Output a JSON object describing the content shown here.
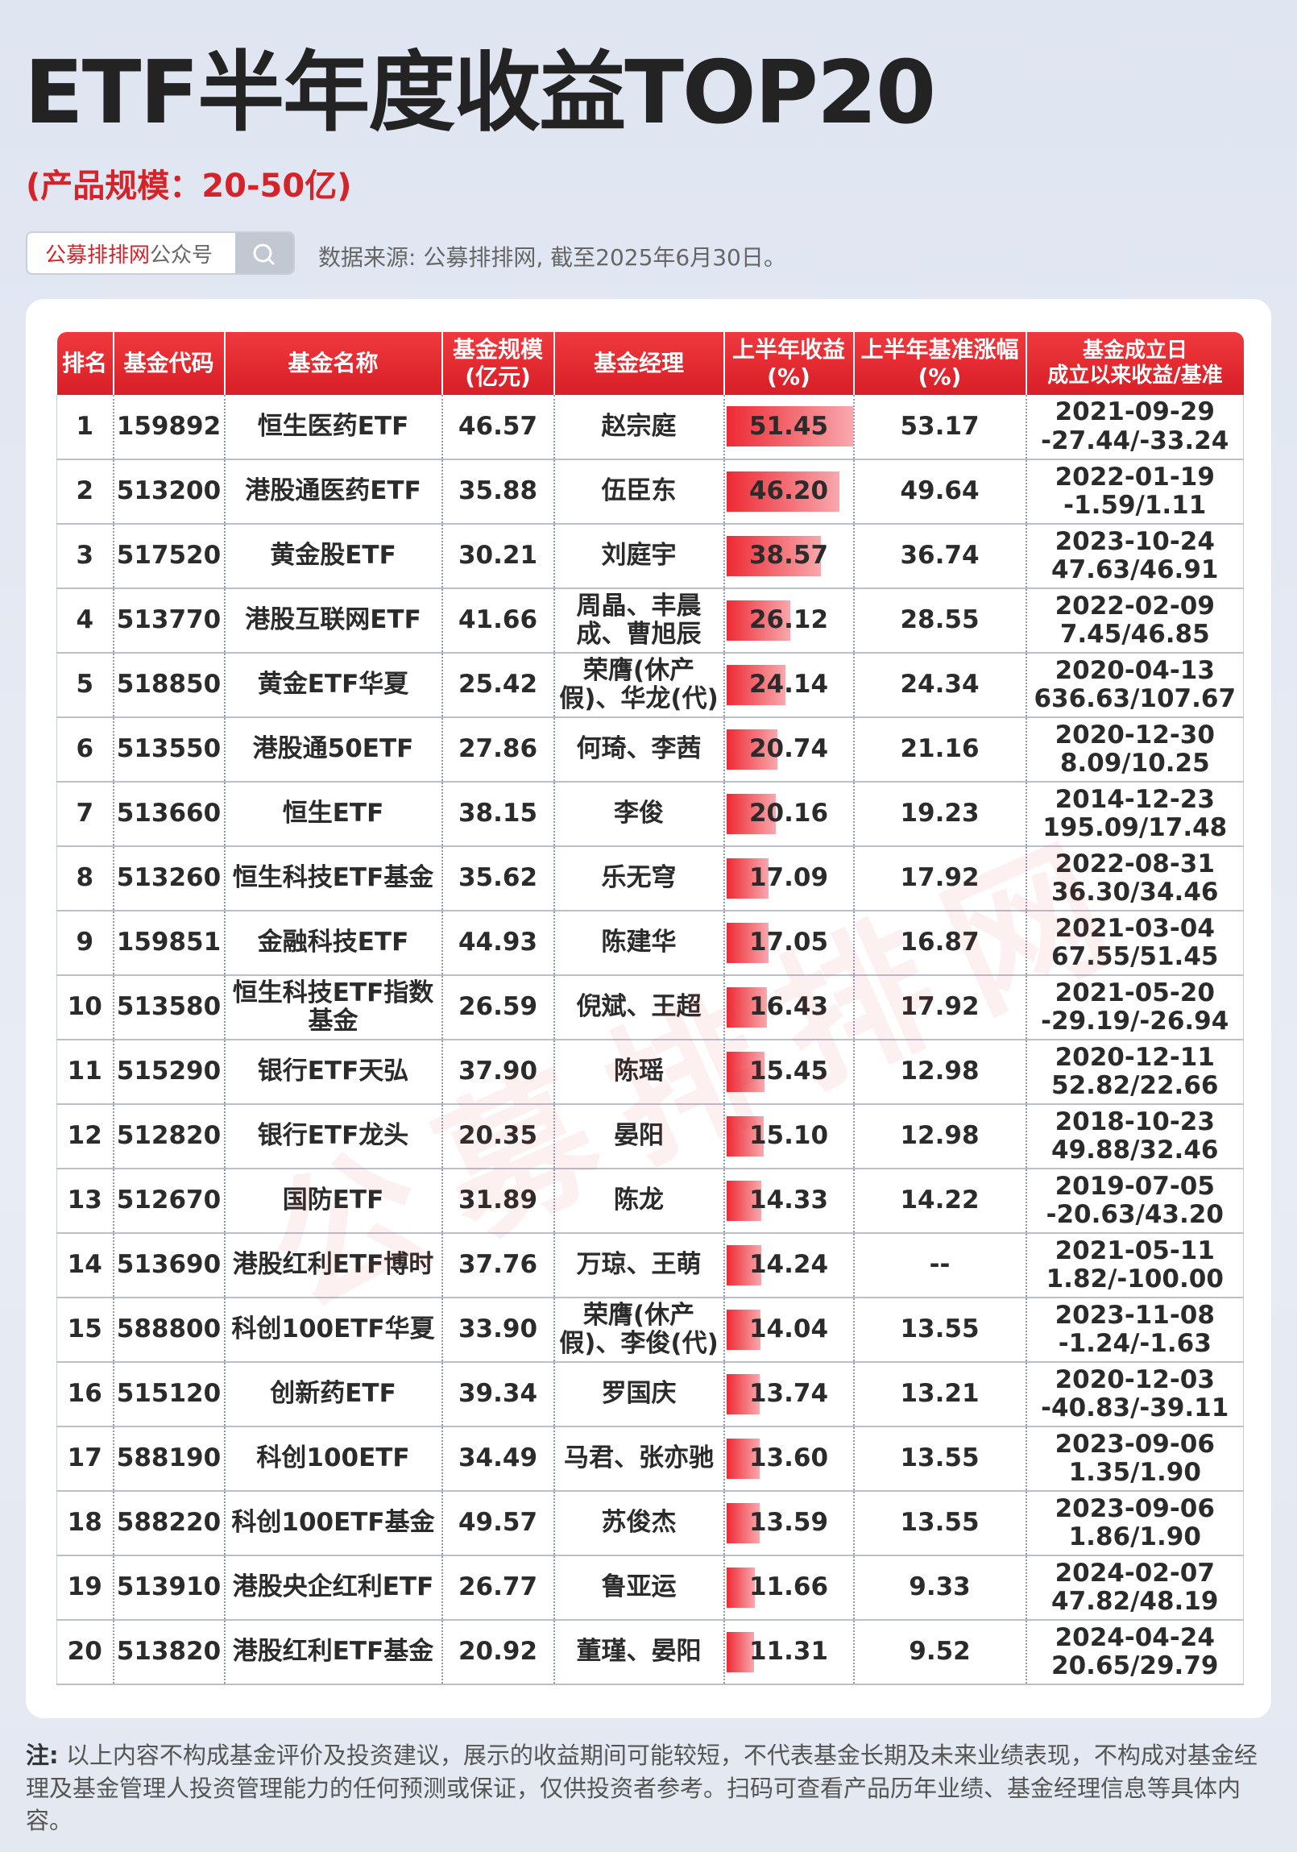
{
  "header": {
    "title": "ETF半年度收益TOP20",
    "subtitle": "(产品规模：20-50亿)",
    "search_brand": "公募排排网",
    "search_suffix": "公众号",
    "source": "数据来源: 公募排排网, 截至2025年6月30日。"
  },
  "watermark": "公募排排网",
  "table": {
    "columns": [
      [
        "排名"
      ],
      [
        "基金代码"
      ],
      [
        "基金名称"
      ],
      [
        "基金规模",
        "(亿元)"
      ],
      [
        "基金经理"
      ],
      [
        "上半年收益",
        "(%)"
      ],
      [
        "上半年基准涨幅",
        "(%)"
      ],
      [
        "基金成立日",
        "成立以来收益/基准"
      ]
    ],
    "rows": [
      [
        "1",
        "159892",
        "恒生医药ETF",
        "46.57",
        "赵宗庭",
        "51.45",
        "53.17",
        "2021-09-29",
        "-27.44/-33.24"
      ],
      [
        "2",
        "513200",
        "港股通医药ETF",
        "35.88",
        "伍臣东",
        "46.20",
        "49.64",
        "2022-01-19",
        "-1.59/1.11"
      ],
      [
        "3",
        "517520",
        "黄金股ETF",
        "30.21",
        "刘庭宇",
        "38.57",
        "36.74",
        "2023-10-24",
        "47.63/46.91"
      ],
      [
        "4",
        "513770",
        "港股互联网ETF",
        "41.66",
        "周晶、丰晨成、曹旭辰",
        "26.12",
        "28.55",
        "2022-02-09",
        "7.45/46.85"
      ],
      [
        "5",
        "518850",
        "黄金ETF华夏",
        "25.42",
        "荣膺(休产假)、华龙(代)",
        "24.14",
        "24.34",
        "2020-04-13",
        "636.63/107.67"
      ],
      [
        "6",
        "513550",
        "港股通50ETF",
        "27.86",
        "何琦、李茜",
        "20.74",
        "21.16",
        "2020-12-30",
        "8.09/10.25"
      ],
      [
        "7",
        "513660",
        "恒生ETF",
        "38.15",
        "李俊",
        "20.16",
        "19.23",
        "2014-12-23",
        "195.09/17.48"
      ],
      [
        "8",
        "513260",
        "恒生科技ETF基金",
        "35.62",
        "乐无穹",
        "17.09",
        "17.92",
        "2022-08-31",
        "36.30/34.46"
      ],
      [
        "9",
        "159851",
        "金融科技ETF",
        "44.93",
        "陈建华",
        "17.05",
        "16.87",
        "2021-03-04",
        "67.55/51.45"
      ],
      [
        "10",
        "513580",
        "恒生科技ETF指数基金",
        "26.59",
        "倪斌、王超",
        "16.43",
        "17.92",
        "2021-05-20",
        "-29.19/-26.94"
      ],
      [
        "11",
        "515290",
        "银行ETF天弘",
        "37.90",
        "陈瑶",
        "15.45",
        "12.98",
        "2020-12-11",
        "52.82/22.66"
      ],
      [
        "12",
        "512820",
        "银行ETF龙头",
        "20.35",
        "晏阳",
        "15.10",
        "12.98",
        "2018-10-23",
        "49.88/32.46"
      ],
      [
        "13",
        "512670",
        "国防ETF",
        "31.89",
        "陈龙",
        "14.33",
        "14.22",
        "2019-07-05",
        "-20.63/43.20"
      ],
      [
        "14",
        "513690",
        "港股红利ETF博时",
        "37.76",
        "万琼、王萌",
        "14.24",
        "--",
        "2021-05-11",
        "1.82/-100.00"
      ],
      [
        "15",
        "588800",
        "科创100ETF华夏",
        "33.90",
        "荣膺(休产假)、李俊(代)",
        "14.04",
        "13.55",
        "2023-11-08",
        "-1.24/-1.63"
      ],
      [
        "16",
        "515120",
        "创新药ETF",
        "39.34",
        "罗国庆",
        "13.74",
        "13.21",
        "2020-12-03",
        "-40.83/-39.11"
      ],
      [
        "17",
        "588190",
        "科创100ETF",
        "34.49",
        "马君、张亦驰",
        "13.60",
        "13.55",
        "2023-09-06",
        "1.35/1.90"
      ],
      [
        "18",
        "588220",
        "科创100ETF基金",
        "49.57",
        "苏俊杰",
        "13.59",
        "13.55",
        "2023-09-06",
        "1.86/1.90"
      ],
      [
        "19",
        "513910",
        "港股央企红利ETF",
        "26.77",
        "鲁亚运",
        "11.66",
        "9.33",
        "2024-02-07",
        "47.82/48.19"
      ],
      [
        "20",
        "513820",
        "港股红利ETF基金",
        "20.92",
        "董瑾、晏阳",
        "11.31",
        "9.52",
        "2024-04-24",
        "20.65/29.79"
      ]
    ]
  },
  "footnote": {
    "label": "注:",
    "text": "以上内容不构成基金评价及投资建议，展示的收益期间可能较短，不代表基金长期及未来业绩表现，不构成对基金经理及基金管理人投资管理能力的任何预测或保证，仅供投资者参考。扫码可查看产品历年业绩、基金经理信息等具体内容。"
  }
}
